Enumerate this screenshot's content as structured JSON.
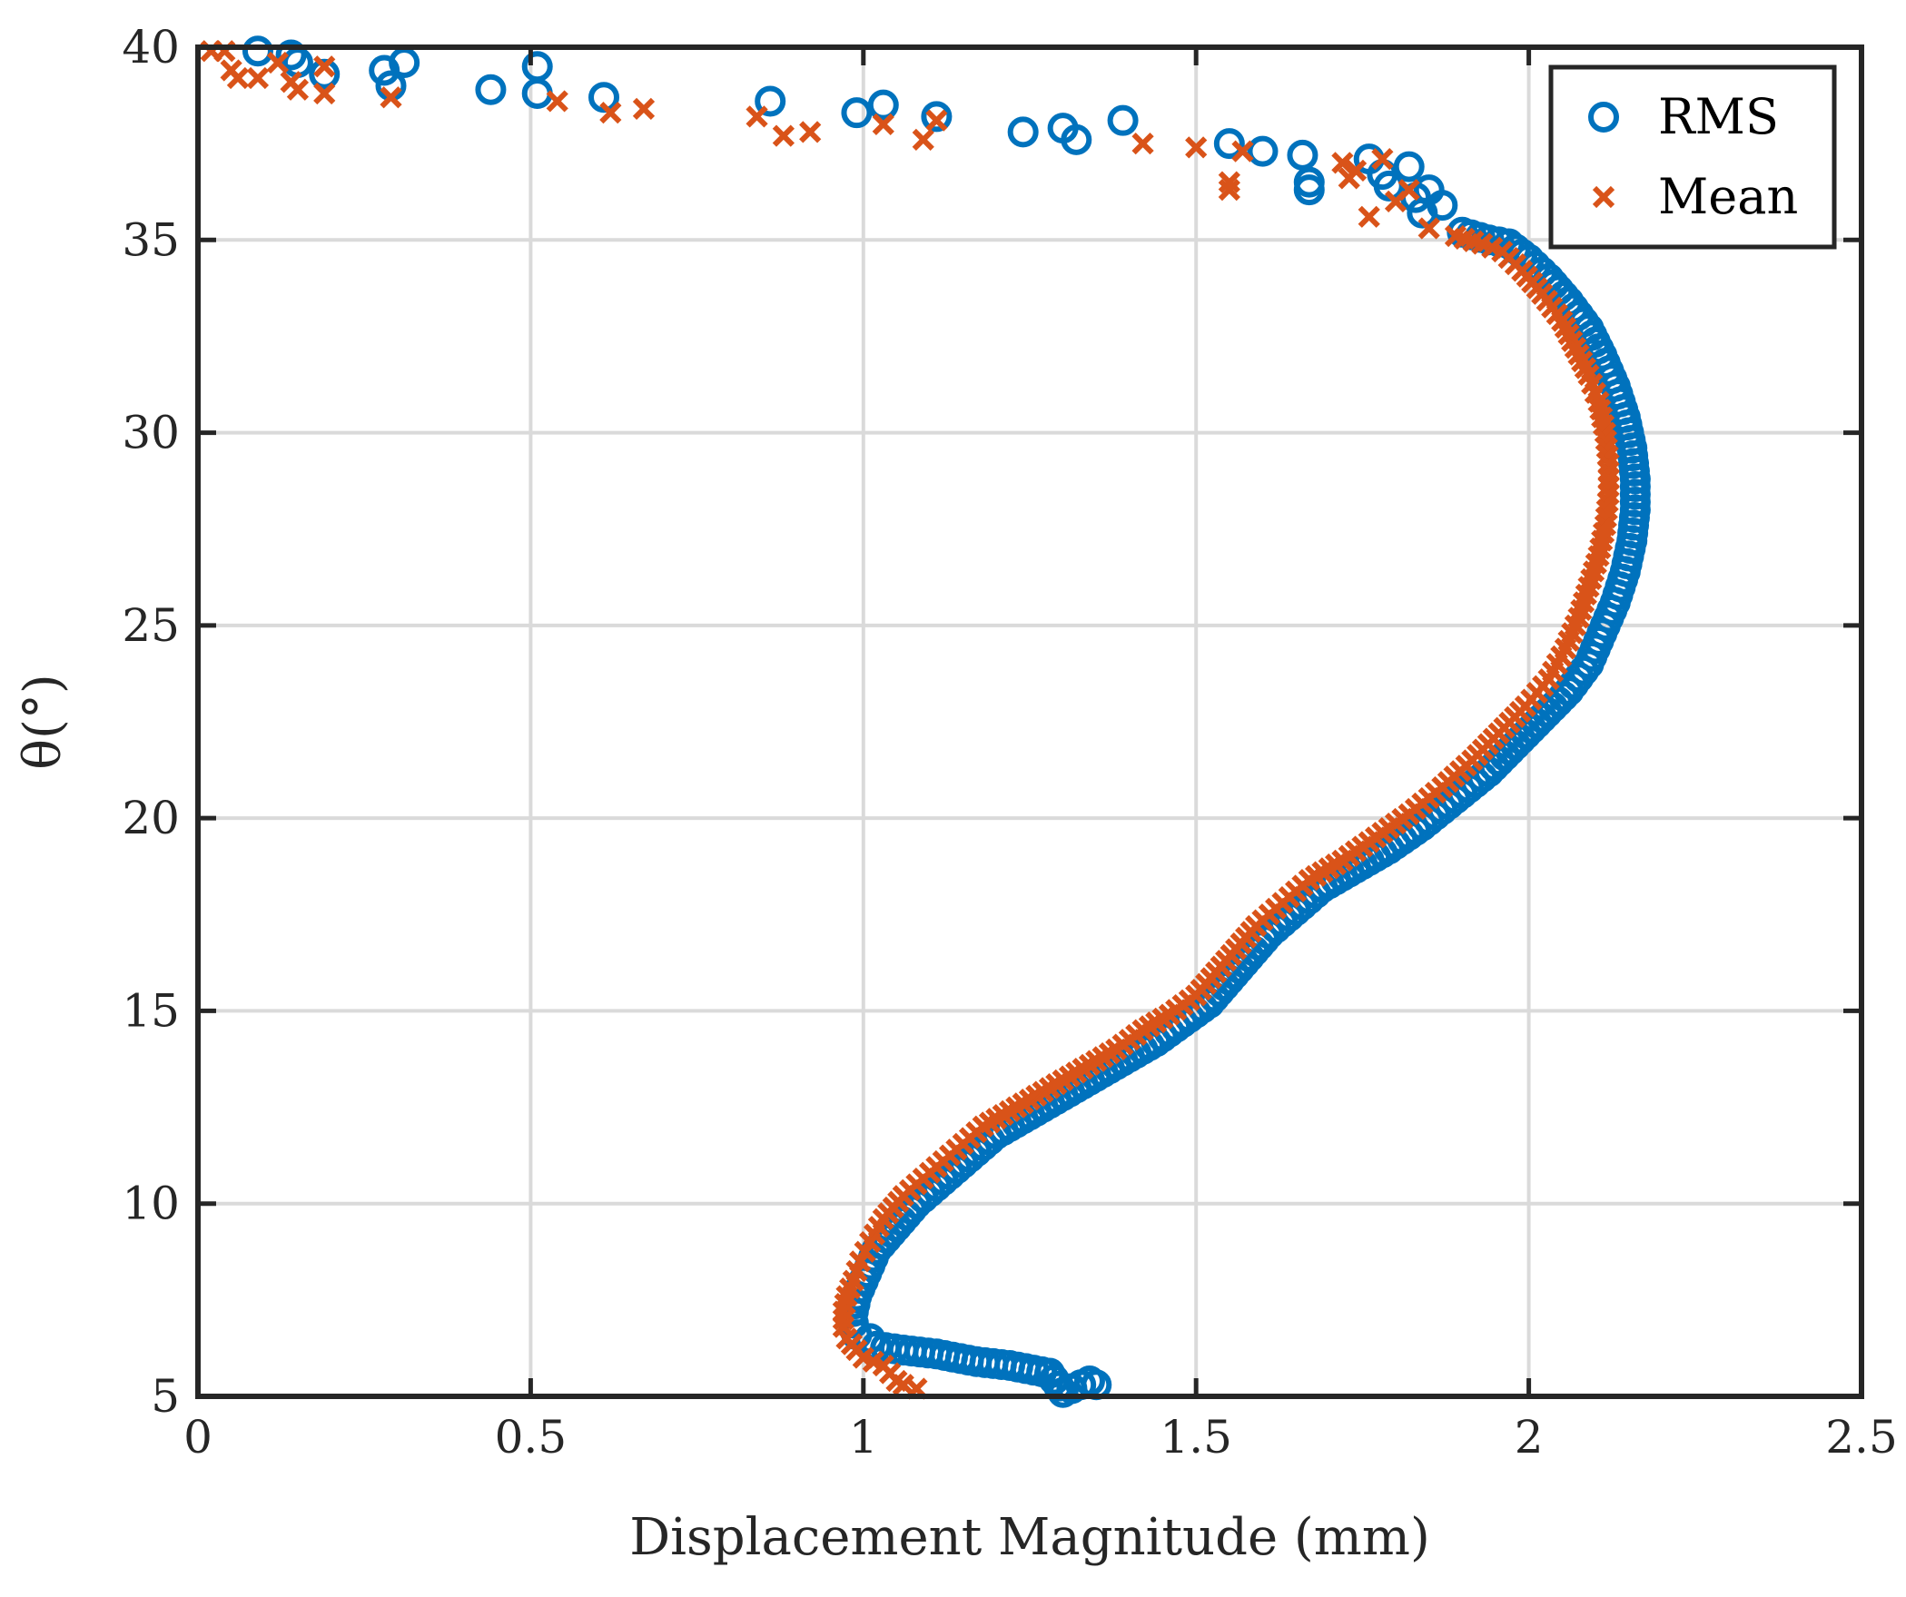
{
  "colors": {
    "rms": "#0072BD",
    "mean": "#D95319",
    "grid": "#DADADA",
    "axis": "#262626"
  },
  "chart_data": {
    "type": "scatter",
    "title": "",
    "xlabel": "Displacement Magnitude (mm)",
    "ylabel": "θ(°)",
    "xlim": [
      0,
      2.5
    ],
    "ylim": [
      5,
      40
    ],
    "xticks": [
      0,
      0.5,
      1,
      1.5,
      2,
      2.5
    ],
    "xtick_labels": [
      "0",
      "0.5",
      "1",
      "1.5",
      "2",
      "2.5"
    ],
    "yticks": [
      5,
      10,
      15,
      20,
      25,
      30,
      35,
      40
    ],
    "ytick_labels": [
      "5",
      "10",
      "15",
      "20",
      "25",
      "30",
      "35",
      "40"
    ],
    "grid": true,
    "legend": {
      "position": "top-right",
      "entries": [
        "RMS",
        "Mean"
      ]
    },
    "series": [
      {
        "name": "RMS",
        "marker": "circle",
        "color": "#0072BD",
        "points": [
          [
            0.09,
            39.9
          ],
          [
            0.14,
            39.8
          ],
          [
            0.15,
            39.6
          ],
          [
            0.19,
            39.3
          ],
          [
            0.28,
            39.4
          ],
          [
            0.29,
            39.0
          ],
          [
            0.31,
            39.6
          ],
          [
            0.44,
            38.9
          ],
          [
            0.51,
            39.5
          ],
          [
            0.51,
            38.8
          ],
          [
            0.61,
            38.7
          ],
          [
            0.86,
            38.6
          ],
          [
            0.99,
            38.3
          ],
          [
            1.03,
            38.5
          ],
          [
            1.11,
            38.2
          ],
          [
            1.24,
            37.8
          ],
          [
            1.3,
            37.9
          ],
          [
            1.32,
            37.6
          ],
          [
            1.39,
            38.1
          ],
          [
            1.55,
            37.5
          ],
          [
            1.6,
            37.3
          ],
          [
            1.66,
            37.2
          ],
          [
            1.67,
            36.5
          ],
          [
            1.67,
            36.3
          ],
          [
            1.76,
            37.1
          ],
          [
            1.78,
            36.7
          ],
          [
            1.79,
            36.4
          ],
          [
            1.82,
            36.9
          ],
          [
            1.83,
            36.1
          ],
          [
            1.84,
            35.7
          ],
          [
            1.85,
            36.3
          ],
          [
            1.87,
            35.9
          ],
          [
            1.9,
            35.2
          ],
          [
            1.94,
            35.0
          ],
          [
            1.97,
            34.9
          ],
          [
            2.0,
            34.5
          ],
          [
            2.03,
            34.0
          ],
          [
            2.06,
            33.4
          ],
          [
            2.09,
            32.7
          ],
          [
            2.11,
            32.0
          ],
          [
            2.13,
            31.2
          ],
          [
            2.145,
            30.4
          ],
          [
            2.155,
            29.6
          ],
          [
            2.16,
            28.8
          ],
          [
            2.16,
            28.0
          ],
          [
            2.155,
            27.2
          ],
          [
            2.145,
            26.4
          ],
          [
            2.13,
            25.6
          ],
          [
            2.11,
            24.8
          ],
          [
            2.09,
            24.0
          ],
          [
            2.06,
            23.3
          ],
          [
            2.02,
            22.6
          ],
          [
            1.98,
            21.9
          ],
          [
            1.94,
            21.2
          ],
          [
            1.89,
            20.5
          ],
          [
            1.84,
            19.8
          ],
          [
            1.79,
            19.2
          ],
          [
            1.74,
            18.7
          ],
          [
            1.69,
            18.2
          ],
          [
            1.65,
            17.6
          ],
          [
            1.61,
            17.0
          ],
          [
            1.58,
            16.4
          ],
          [
            1.55,
            15.8
          ],
          [
            1.52,
            15.2
          ],
          [
            1.48,
            14.7
          ],
          [
            1.44,
            14.2
          ],
          [
            1.4,
            13.8
          ],
          [
            1.35,
            13.3
          ],
          [
            1.3,
            12.8
          ],
          [
            1.25,
            12.3
          ],
          [
            1.2,
            11.8
          ],
          [
            1.16,
            11.2
          ],
          [
            1.12,
            10.6
          ],
          [
            1.08,
            10.0
          ],
          [
            1.05,
            9.4
          ],
          [
            1.02,
            8.8
          ],
          [
            1.01,
            8.4
          ],
          [
            1.0,
            8.0
          ],
          [
            0.99,
            7.6
          ],
          [
            0.985,
            7.2
          ],
          [
            0.985,
            6.9
          ],
          [
            0.99,
            6.6
          ],
          [
            1.01,
            6.5
          ],
          [
            1.02,
            6.3
          ],
          [
            1.06,
            6.2
          ],
          [
            1.11,
            6.1
          ],
          [
            1.17,
            5.9
          ],
          [
            1.22,
            5.8
          ],
          [
            1.28,
            5.6
          ],
          [
            1.3,
            5.1
          ],
          [
            1.34,
            5.4
          ],
          [
            1.35,
            5.3
          ]
        ]
      },
      {
        "name": "Mean",
        "marker": "x",
        "color": "#D95319",
        "points": [
          [
            0.02,
            39.9
          ],
          [
            0.04,
            39.9
          ],
          [
            0.05,
            39.4
          ],
          [
            0.06,
            39.2
          ],
          [
            0.09,
            39.2
          ],
          [
            0.12,
            39.6
          ],
          [
            0.14,
            39.1
          ],
          [
            0.15,
            38.9
          ],
          [
            0.19,
            39.5
          ],
          [
            0.19,
            38.8
          ],
          [
            0.29,
            38.7
          ],
          [
            0.54,
            38.6
          ],
          [
            0.62,
            38.3
          ],
          [
            0.67,
            38.4
          ],
          [
            0.84,
            38.2
          ],
          [
            0.88,
            37.7
          ],
          [
            0.92,
            37.8
          ],
          [
            1.03,
            38.0
          ],
          [
            1.09,
            37.6
          ],
          [
            1.11,
            38.1
          ],
          [
            1.42,
            37.5
          ],
          [
            1.5,
            37.4
          ],
          [
            1.55,
            36.5
          ],
          [
            1.55,
            36.3
          ],
          [
            1.57,
            37.3
          ],
          [
            1.72,
            37.0
          ],
          [
            1.73,
            36.6
          ],
          [
            1.74,
            36.8
          ],
          [
            1.76,
            35.6
          ],
          [
            1.78,
            37.1
          ],
          [
            1.8,
            36.0
          ],
          [
            1.82,
            36.3
          ],
          [
            1.85,
            35.3
          ],
          [
            1.89,
            35.1
          ],
          [
            1.93,
            34.9
          ],
          [
            1.96,
            34.7
          ],
          [
            1.99,
            34.2
          ],
          [
            2.02,
            33.6
          ],
          [
            2.05,
            32.9
          ],
          [
            2.07,
            32.2
          ],
          [
            2.09,
            31.5
          ],
          [
            2.105,
            30.8
          ],
          [
            2.115,
            30.0
          ],
          [
            2.12,
            29.2
          ],
          [
            2.12,
            28.4
          ],
          [
            2.115,
            27.6
          ],
          [
            2.105,
            26.8
          ],
          [
            2.09,
            26.0
          ],
          [
            2.075,
            25.2
          ],
          [
            2.055,
            24.4
          ],
          [
            2.03,
            23.6
          ],
          [
            1.995,
            22.9
          ],
          [
            1.955,
            22.2
          ],
          [
            1.915,
            21.5
          ],
          [
            1.87,
            20.8
          ],
          [
            1.82,
            20.1
          ],
          [
            1.77,
            19.5
          ],
          [
            1.72,
            18.9
          ],
          [
            1.67,
            18.4
          ],
          [
            1.63,
            17.8
          ],
          [
            1.59,
            17.2
          ],
          [
            1.56,
            16.6
          ],
          [
            1.53,
            16.0
          ],
          [
            1.5,
            15.4
          ],
          [
            1.46,
            14.9
          ],
          [
            1.42,
            14.5
          ],
          [
            1.38,
            14.0
          ],
          [
            1.33,
            13.5
          ],
          [
            1.28,
            13.0
          ],
          [
            1.23,
            12.5
          ],
          [
            1.18,
            12.0
          ],
          [
            1.14,
            11.4
          ],
          [
            1.1,
            10.8
          ],
          [
            1.06,
            10.2
          ],
          [
            1.03,
            9.6
          ],
          [
            1.01,
            9.0
          ],
          [
            0.995,
            8.5
          ],
          [
            0.985,
            8.0
          ],
          [
            0.975,
            7.6
          ],
          [
            0.97,
            7.2
          ],
          [
            0.97,
            6.8
          ],
          [
            0.975,
            6.5
          ],
          [
            0.99,
            6.2
          ],
          [
            1.0,
            6.0
          ],
          [
            1.03,
            5.8
          ],
          [
            1.05,
            5.4
          ],
          [
            1.06,
            5.3
          ],
          [
            1.08,
            5.2
          ]
        ]
      }
    ]
  }
}
